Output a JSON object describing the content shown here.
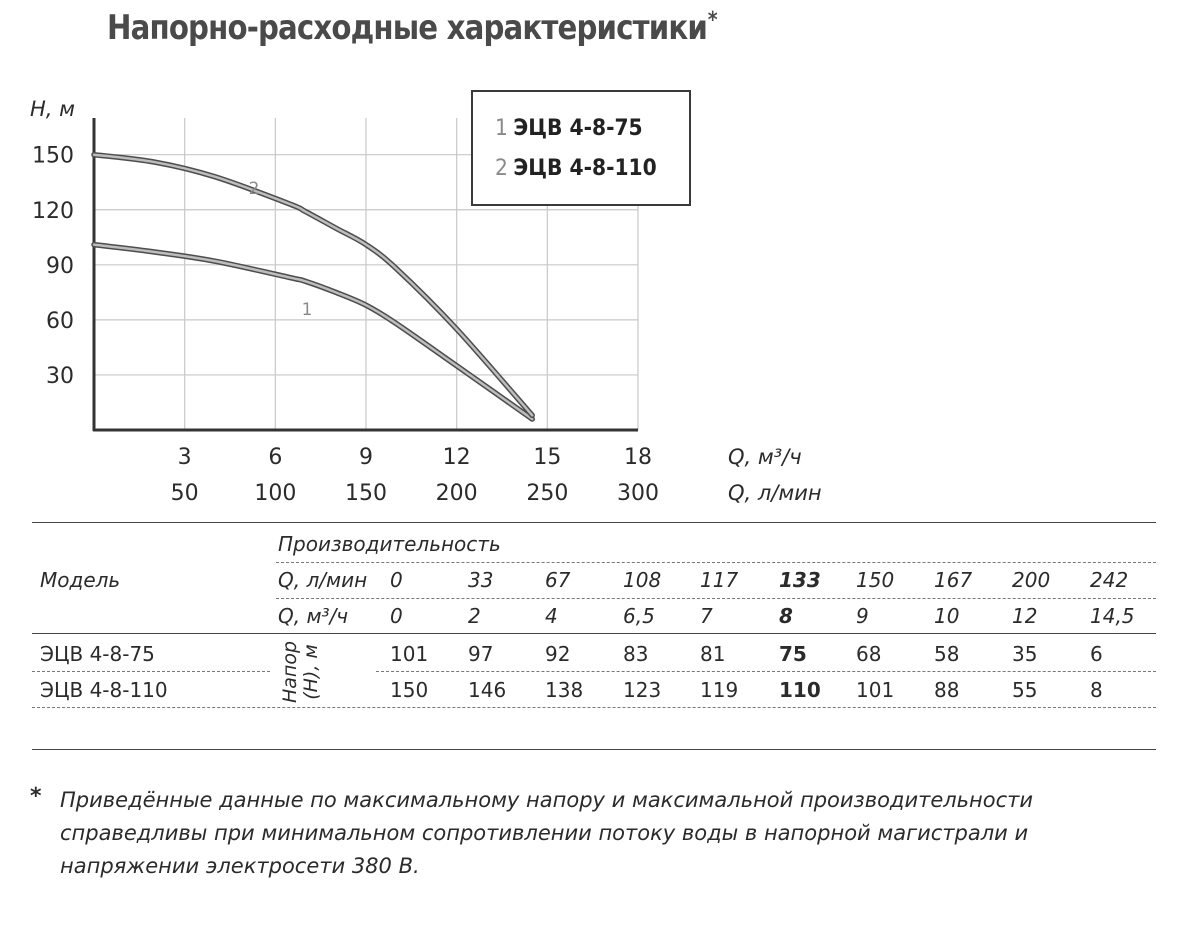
{
  "title": "Напорно-расходные характеристики",
  "title_mark": "*",
  "chart_data": {
    "type": "line",
    "ylabel": "H, м",
    "xlabel": "Q, м³/ч",
    "xlabel_alt": "Q, л/мин",
    "xlabel_alt_ticks": [
      "50",
      "100",
      "150",
      "200",
      "250",
      "300"
    ],
    "xlim": [
      0,
      18
    ],
    "ylim": [
      0,
      170
    ],
    "xticks": [
      3,
      6,
      9,
      12,
      15,
      18
    ],
    "yticks": [
      30,
      60,
      90,
      120,
      150
    ],
    "grid": true,
    "legend_position": "top-right",
    "series": [
      {
        "name": "ЭЦВ 4-8-75",
        "label": "1",
        "color": "#8c8c8c",
        "x": [
          0,
          2,
          4,
          6.5,
          7,
          8,
          9,
          10,
          12,
          14.5
        ],
        "y": [
          101,
          97,
          92,
          83,
          81,
          75,
          68,
          58,
          35,
          6
        ]
      },
      {
        "name": "ЭЦВ 4-8-110",
        "label": "2",
        "color": "#8c8c8c",
        "x": [
          0,
          2,
          4,
          6.5,
          7,
          8,
          9,
          10,
          12,
          14.5
        ],
        "y": [
          150,
          146,
          138,
          123,
          119,
          110,
          101,
          88,
          55,
          8
        ]
      }
    ]
  },
  "table": {
    "header_group": "Производительность",
    "model_header": "Модель",
    "row_q_lmin_label": "Q, л/мин",
    "row_q_m3h_label": "Q, м³/ч",
    "q_lmin": [
      "0",
      "33",
      "67",
      "108",
      "117",
      "133",
      "150",
      "167",
      "200",
      "242"
    ],
    "q_m3h": [
      "0",
      "2",
      "4",
      "6,5",
      "7",
      "8",
      "9",
      "10",
      "12",
      "14,5"
    ],
    "head_label_line1": "Напор",
    "head_label_line2": "(H), м",
    "highlight_index": 5,
    "rows": [
      {
        "model": "ЭЦВ 4-8-75",
        "values": [
          "101",
          "97",
          "92",
          "83",
          "81",
          "75",
          "68",
          "58",
          "35",
          "6"
        ]
      },
      {
        "model": "ЭЦВ 4-8-110",
        "values": [
          "150",
          "146",
          "138",
          "123",
          "119",
          "110",
          "101",
          "88",
          "55",
          "8"
        ]
      }
    ]
  },
  "footnote_mark": "*",
  "footnote": "Приведённые данные по максимальному напору и максимальной производительности справедливы при минимальном сопротивлении потоку воды в напорной магистрали и напряжении электросети 380 В."
}
